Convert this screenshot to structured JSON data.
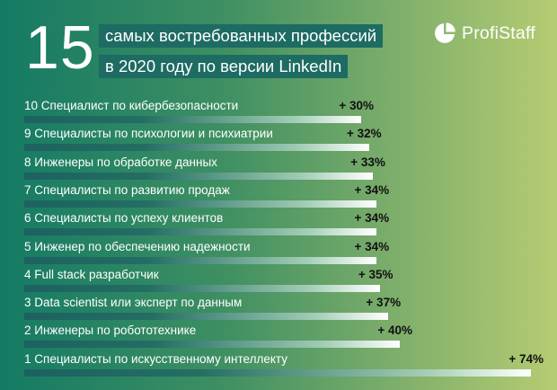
{
  "header": {
    "big_number": "15",
    "title_line1": "самых востребованных профессий",
    "title_line2": "в 2020 году по версии LinkedIn"
  },
  "logo": {
    "text": "ProfiStaff",
    "icon": "pie-chart-logo-icon"
  },
  "colors": {
    "background_left": "#147a64",
    "background_right": "#b5cc72",
    "title_box": "#1d6b63",
    "bar_dark": "#1d605f",
    "bar_light": "#ffffff"
  },
  "chart_data": {
    "type": "bar",
    "orientation": "horizontal",
    "title": "15 самых востребованных профессий в 2020 году по версии LinkedIn",
    "categories": [
      "10 Специалист по кибербезопасности",
      "9 Специалисты по психологии и психиатрии",
      "8 Инженеры по обработке данных",
      "7 Специалисты по развитию продаж",
      "6 Специалисты по успеху клиентов",
      "5 Инженер по обеспечению надежности",
      "4 Full stack разработчик",
      "3 Data scientist или эксперт по данным",
      "2 Инженеры по робототехнике",
      "1 Специалисты по искусственному интеллекту"
    ],
    "values": [
      30,
      32,
      33,
      34,
      34,
      34,
      35,
      37,
      40,
      74
    ],
    "value_labels": [
      "+ 30%",
      "+ 32%",
      "+ 33%",
      "+ 34%",
      "+ 34%",
      "+ 34%",
      "+ 35%",
      "+ 37%",
      "+ 40%",
      "+ 74%"
    ],
    "unit": "%",
    "xlim": [
      0,
      80
    ],
    "grid": false,
    "legend": "none"
  }
}
